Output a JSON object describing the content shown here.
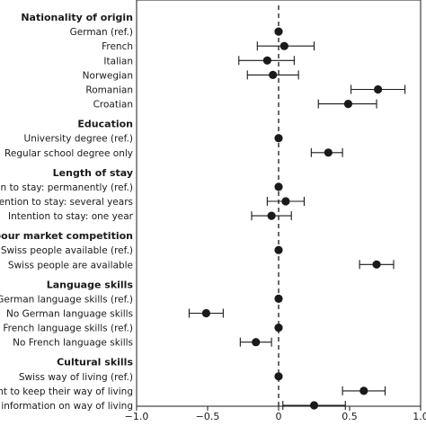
{
  "chart_data": {
    "type": "scatter",
    "orientation": "horizontal-coefficient-plot",
    "title": "",
    "xlabel": "",
    "ylabel": "",
    "xlim": [
      -1.0,
      1.0
    ],
    "xticks": [
      -1.0,
      -0.5,
      0,
      0.5,
      1.0
    ],
    "xtick_labels": [
      "−1.0",
      "−0.5",
      "0",
      "0.5",
      "1.0"
    ],
    "reference_line": 0,
    "grid": false,
    "legend": "none",
    "marker_color": "#1a1a1a",
    "groups": [
      {
        "label": "Nationality of origin",
        "items": [
          {
            "label": "German (ref.)",
            "value": 0.0
          },
          {
            "label": "French",
            "value": 0.04,
            "ci": [
              -0.15,
              0.25
            ]
          },
          {
            "label": "Italian",
            "value": -0.08,
            "ci": [
              -0.28,
              0.11
            ]
          },
          {
            "label": "Norwegian",
            "value": -0.04,
            "ci": [
              -0.22,
              0.14
            ]
          },
          {
            "label": "Romanian",
            "value": 0.7,
            "ci": [
              0.51,
              0.89
            ]
          },
          {
            "label": "Croatian",
            "value": 0.49,
            "ci": [
              0.28,
              0.69
            ]
          }
        ]
      },
      {
        "label": "Education",
        "items": [
          {
            "label": "University degree (ref.)",
            "value": 0.0
          },
          {
            "label": "Regular school degree only",
            "value": 0.35,
            "ci": [
              0.23,
              0.45
            ]
          }
        ]
      },
      {
        "label": "Length of stay",
        "items": [
          {
            "label": "Intention to stay: permanently (ref.)",
            "value": 0.0
          },
          {
            "label": "Intention to stay: several years",
            "value": 0.05,
            "ci": [
              -0.08,
              0.18
            ]
          },
          {
            "label": "Intention to stay: one year",
            "value": -0.05,
            "ci": [
              -0.19,
              0.09
            ]
          }
        ]
      },
      {
        "label": "Labour market competition",
        "items": [
          {
            "label": "No Swiss people available (ref.)",
            "value": 0.0
          },
          {
            "label": "Swiss people are available",
            "value": 0.69,
            "ci": [
              0.57,
              0.81
            ]
          }
        ]
      },
      {
        "label": "Language skills",
        "items": [
          {
            "label": "German language skills (ref.)",
            "value": 0.0
          },
          {
            "label": "No German language skills",
            "value": -0.51,
            "ci": [
              -0.63,
              -0.39
            ]
          },
          {
            "label": "French language skills (ref.)",
            "value": 0.0
          },
          {
            "label": "No French language skills",
            "value": -0.16,
            "ci": [
              -0.27,
              -0.05
            ]
          }
        ]
      },
      {
        "label": "Cultural skills",
        "items": [
          {
            "label": "Swiss way of living (ref.)",
            "value": 0.0
          },
          {
            "label": "Want to keep their way of living",
            "value": 0.6,
            "ci": [
              0.45,
              0.75
            ]
          },
          {
            "label": "No information on way of living",
            "value": 0.25,
            "ci": [
              0.03,
              0.47
            ]
          }
        ]
      }
    ]
  }
}
